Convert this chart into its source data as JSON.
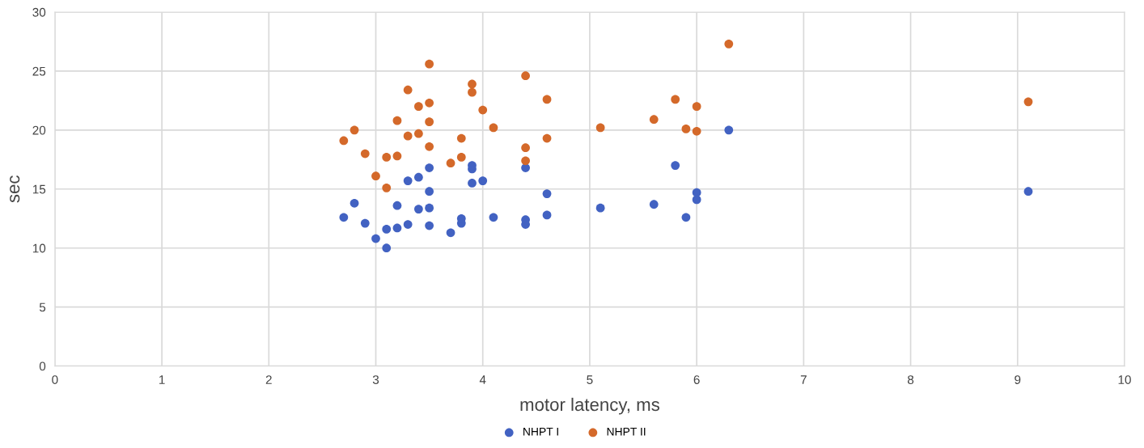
{
  "chart_data": {
    "type": "scatter",
    "xlabel": "motor latency, ms",
    "ylabel": "sec",
    "xlim": [
      0,
      10
    ],
    "xticks": [
      0,
      1,
      2,
      3,
      4,
      5,
      6,
      7,
      8,
      9,
      10
    ],
    "ylim": [
      0,
      30
    ],
    "yticks": [
      0,
      5,
      10,
      15,
      20,
      25,
      30
    ],
    "grid": true,
    "legend": "bottom",
    "marker": "circle",
    "series": [
      {
        "name": "NHPT I",
        "color": "#4262c2",
        "x": [
          2.7,
          2.8,
          2.9,
          3.0,
          3.1,
          3.1,
          3.2,
          3.2,
          3.3,
          3.3,
          3.4,
          3.4,
          3.5,
          3.5,
          3.5,
          3.5,
          3.7,
          3.8,
          3.8,
          3.9,
          3.9,
          3.9,
          4.0,
          4.1,
          4.4,
          4.4,
          4.4,
          4.6,
          4.6,
          5.1,
          5.6,
          5.8,
          5.9,
          6.0,
          6.0,
          6.3,
          9.1
        ],
        "values": [
          12.6,
          13.8,
          12.1,
          10.8,
          10.0,
          11.6,
          11.7,
          13.6,
          12.0,
          15.7,
          13.3,
          16.0,
          11.9,
          13.4,
          14.8,
          16.8,
          11.3,
          12.1,
          12.5,
          15.5,
          16.7,
          17.0,
          15.7,
          12.6,
          12.0,
          12.4,
          16.8,
          12.8,
          14.6,
          13.4,
          13.7,
          17.0,
          12.6,
          14.1,
          14.7,
          20.0,
          14.8
        ]
      },
      {
        "name": "NHPT II",
        "color": "#d4692a",
        "x": [
          2.7,
          2.8,
          2.9,
          3.0,
          3.1,
          3.1,
          3.2,
          3.2,
          3.3,
          3.3,
          3.4,
          3.4,
          3.5,
          3.5,
          3.5,
          3.5,
          3.7,
          3.8,
          3.8,
          3.9,
          3.9,
          4.0,
          4.1,
          4.4,
          4.4,
          4.4,
          4.6,
          4.6,
          5.1,
          5.6,
          5.8,
          5.9,
          6.0,
          6.0,
          6.3,
          9.1
        ],
        "values": [
          19.1,
          20.0,
          18.0,
          16.1,
          15.1,
          17.7,
          17.8,
          20.8,
          19.5,
          23.4,
          19.7,
          22.0,
          18.6,
          20.7,
          22.3,
          25.6,
          17.2,
          17.7,
          19.3,
          23.2,
          23.9,
          21.7,
          20.2,
          17.4,
          18.5,
          24.6,
          19.3,
          22.6,
          20.2,
          20.9,
          22.6,
          20.1,
          19.9,
          22.0,
          27.3,
          22.4
        ]
      }
    ]
  }
}
